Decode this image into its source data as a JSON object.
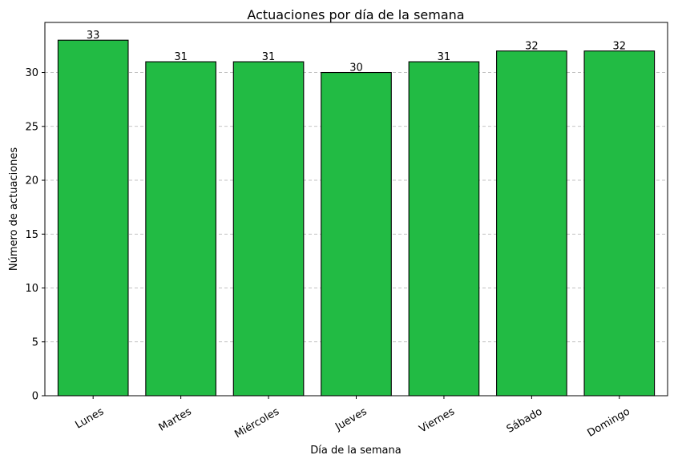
{
  "chart_data": {
    "type": "bar",
    "title": "Actuaciones por día de la semana",
    "xlabel": "Día de la semana",
    "ylabel": "Número de actuaciones",
    "categories": [
      "Lunes",
      "Martes",
      "Miércoles",
      "Jueves",
      "Viernes",
      "Sábado",
      "Domingo"
    ],
    "values": [
      33,
      31,
      31,
      30,
      31,
      32,
      32
    ],
    "ylim": [
      0,
      34.65
    ],
    "yticks": [
      0,
      5,
      10,
      15,
      20,
      25,
      30
    ],
    "grid": "y-axis dashed",
    "bar_color": "#22bb44",
    "bar_edge_color": "#000000",
    "data_labels": true
  }
}
